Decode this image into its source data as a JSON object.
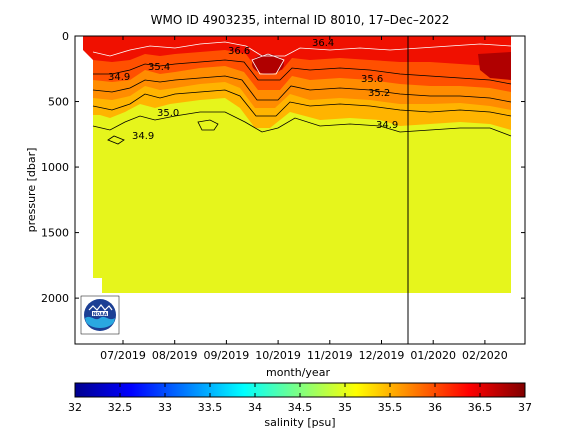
{
  "chart_data": {
    "type": "heatmap",
    "title": "WMO ID 4903235, internal ID 8010, 17–Dec–2022",
    "xlabel": "month/year",
    "ylabel": "pressure [dbar]",
    "x_ticks": [
      "07/2019",
      "08/2019",
      "09/2019",
      "10/2019",
      "11/2019",
      "12/2019",
      "01/2020",
      "02/2020"
    ],
    "y_ticks": [
      0,
      500,
      1000,
      1500,
      2000
    ],
    "ylim": [
      0,
      2350
    ],
    "y_reversed": true,
    "colorbar": {
      "label": "salinity [psu]",
      "ticks": [
        32,
        32.5,
        33,
        33.5,
        34,
        34.5,
        35,
        35.5,
        36,
        36.5,
        37
      ],
      "range": [
        32,
        37
      ]
    },
    "contour_labels": [
      "34.9",
      "35.0",
      "35.4",
      "34.9",
      "35.2",
      "35.6",
      "36.6",
      "36.4",
      "34.9"
    ],
    "field_values": {
      "deep_salinity": 34.9,
      "surface_salinity": 36.6,
      "data_depth_max": 2000
    },
    "legend": "none",
    "grid": false,
    "logo": "NOAA"
  }
}
